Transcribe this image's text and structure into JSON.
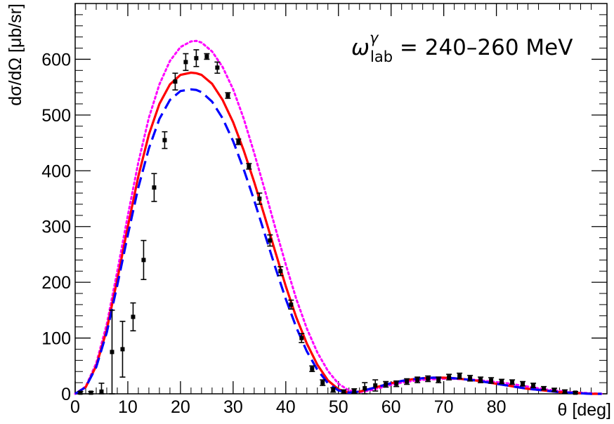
{
  "chart_data": {
    "type": "scatter",
    "title": "",
    "xlabel": "θ [deg]",
    "ylabel": "dσ/dΩ [μb/sr]",
    "xlim": [
      0,
      101
    ],
    "ylim": [
      0,
      700
    ],
    "x_ticks": [
      0,
      10,
      20,
      30,
      40,
      50,
      60,
      70,
      80
    ],
    "y_ticks": [
      0,
      100,
      200,
      300,
      400,
      500,
      600
    ],
    "grid": false,
    "annotation": {
      "symbol": "ω",
      "superscript": "γ",
      "subscript": "lab",
      "text": " = 240–260 MeV"
    },
    "data_points": {
      "name": "",
      "color": "#000000",
      "x": [
        1,
        3,
        5,
        7,
        9,
        11,
        13,
        15,
        17,
        19,
        21,
        23,
        25,
        27,
        29,
        31,
        33,
        35,
        37,
        39,
        41,
        43,
        45,
        47,
        49,
        51,
        53,
        55,
        57,
        59,
        61,
        63,
        65,
        67,
        69,
        71,
        73,
        75,
        77,
        79,
        81,
        83,
        85,
        87,
        89,
        91,
        93,
        95
      ],
      "y": [
        2,
        2,
        4,
        75,
        80,
        138,
        240,
        370,
        455,
        560,
        595,
        602,
        605,
        585,
        535,
        452,
        408,
        350,
        275,
        220,
        160,
        100,
        45,
        20,
        7,
        4,
        5,
        10,
        15,
        17,
        18,
        22,
        25,
        27,
        25,
        30,
        32,
        28,
        25,
        24,
        22,
        21,
        18,
        15,
        10,
        7,
        4,
        2
      ],
      "yerr": [
        2,
        2,
        15,
        75,
        50,
        25,
        35,
        25,
        15,
        15,
        15,
        15,
        5,
        10,
        5,
        5,
        5,
        10,
        10,
        8,
        8,
        8,
        5,
        5,
        4,
        3,
        4,
        10,
        10,
        5,
        5,
        5,
        5,
        5,
        5,
        5,
        5,
        5,
        5,
        5,
        4,
        4,
        4,
        4,
        3,
        3,
        3,
        2
      ]
    },
    "series": [
      {
        "style": "solid",
        "color": "#ff0000",
        "x": [
          0,
          2,
          4,
          6,
          8,
          10,
          12,
          14,
          16,
          18,
          20,
          22,
          23,
          24,
          26,
          28,
          30,
          32,
          34,
          36,
          38,
          40,
          42,
          44,
          46,
          48,
          50,
          52,
          54,
          56,
          58,
          60,
          62,
          64,
          66,
          68,
          70,
          72,
          74,
          76,
          78,
          80,
          82,
          84,
          86,
          88,
          90,
          92,
          94,
          96,
          98,
          100
        ],
        "y": [
          0,
          12,
          50,
          115,
          205,
          300,
          390,
          465,
          520,
          555,
          572,
          576,
          575,
          572,
          556,
          527,
          487,
          437,
          380,
          318,
          255,
          193,
          137,
          90,
          52,
          24,
          8,
          2,
          4,
          9,
          14,
          19,
          23,
          26,
          28,
          29,
          29,
          28,
          26,
          24,
          21,
          18,
          15,
          12,
          9,
          7,
          5,
          3,
          2,
          1,
          0,
          0
        ]
      },
      {
        "style": "dashed",
        "color": "#0000ff",
        "x": [
          0,
          2,
          4,
          6,
          8,
          10,
          12,
          14,
          16,
          18,
          20,
          22,
          23,
          24,
          26,
          28,
          30,
          32,
          34,
          36,
          38,
          40,
          42,
          44,
          46,
          48,
          50,
          52,
          54,
          56,
          58,
          60,
          62,
          64,
          66,
          68,
          70,
          72,
          74,
          76,
          78,
          80,
          82,
          84,
          86,
          88,
          90,
          92,
          94,
          96,
          98,
          100
        ],
        "y": [
          0,
          12,
          48,
          110,
          195,
          285,
          370,
          440,
          493,
          527,
          543,
          546,
          545,
          541,
          524,
          494,
          453,
          403,
          347,
          287,
          227,
          170,
          119,
          76,
          43,
          19,
          6,
          2,
          4,
          9,
          14,
          19,
          23,
          26,
          28,
          29,
          29,
          28,
          26,
          24,
          21,
          18,
          15,
          12,
          9,
          7,
          5,
          3,
          2,
          1,
          0,
          0
        ]
      },
      {
        "style": "dotted",
        "color": "#ff00ff",
        "x": [
          0,
          2,
          4,
          6,
          8,
          10,
          12,
          14,
          16,
          18,
          20,
          22,
          23,
          24,
          26,
          28,
          30,
          32,
          34,
          36,
          38,
          40,
          42,
          44,
          46,
          48,
          50,
          52,
          54,
          56,
          58,
          60,
          62,
          64,
          66,
          68,
          70,
          72,
          74,
          76,
          78,
          80,
          82,
          84,
          86,
          88,
          90,
          92,
          94,
          96,
          98,
          100
        ],
        "y": [
          0,
          13,
          55,
          125,
          220,
          320,
          415,
          495,
          555,
          597,
          622,
          632,
          633,
          630,
          614,
          586,
          546,
          494,
          432,
          366,
          298,
          232,
          170,
          117,
          74,
          41,
          18,
          6,
          3,
          6,
          11,
          16,
          20,
          23,
          25,
          26,
          27,
          27,
          26,
          25,
          23,
          21,
          19,
          16,
          13,
          10,
          7,
          5,
          3,
          2,
          1,
          0
        ]
      }
    ]
  }
}
